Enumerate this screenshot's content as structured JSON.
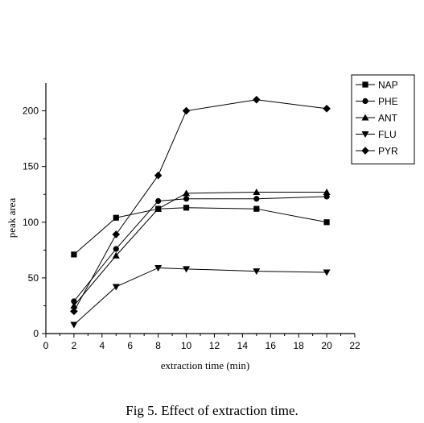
{
  "caption": "Fig 5. Effect of extraction time.",
  "chart_data": {
    "type": "line",
    "xlabel": "extraction time (min)",
    "ylabel": "peak area",
    "xlim": [
      0,
      22
    ],
    "ylim": [
      0,
      225
    ],
    "xticks": [
      0,
      2,
      4,
      6,
      8,
      10,
      12,
      14,
      16,
      18,
      20,
      22
    ],
    "yticks": [
      0,
      50,
      100,
      150,
      200
    ],
    "grid": false,
    "legend_position": "top-right",
    "x": [
      2,
      5,
      8,
      10,
      15,
      20
    ],
    "series": [
      {
        "name": "NAP",
        "marker": "square",
        "values": [
          71,
          104,
          112,
          113,
          112,
          100
        ]
      },
      {
        "name": "PHE",
        "marker": "circle",
        "values": [
          29,
          76,
          119,
          121,
          121,
          123
        ]
      },
      {
        "name": "ANT",
        "marker": "triangle-up",
        "values": [
          25,
          70,
          112,
          126,
          127,
          127
        ]
      },
      {
        "name": "FLU",
        "marker": "triangle-down",
        "values": [
          8,
          42,
          59,
          58,
          56,
          55
        ]
      },
      {
        "name": "PYR",
        "marker": "diamond",
        "values": [
          20,
          89,
          142,
          200,
          210,
          202
        ]
      }
    ]
  }
}
